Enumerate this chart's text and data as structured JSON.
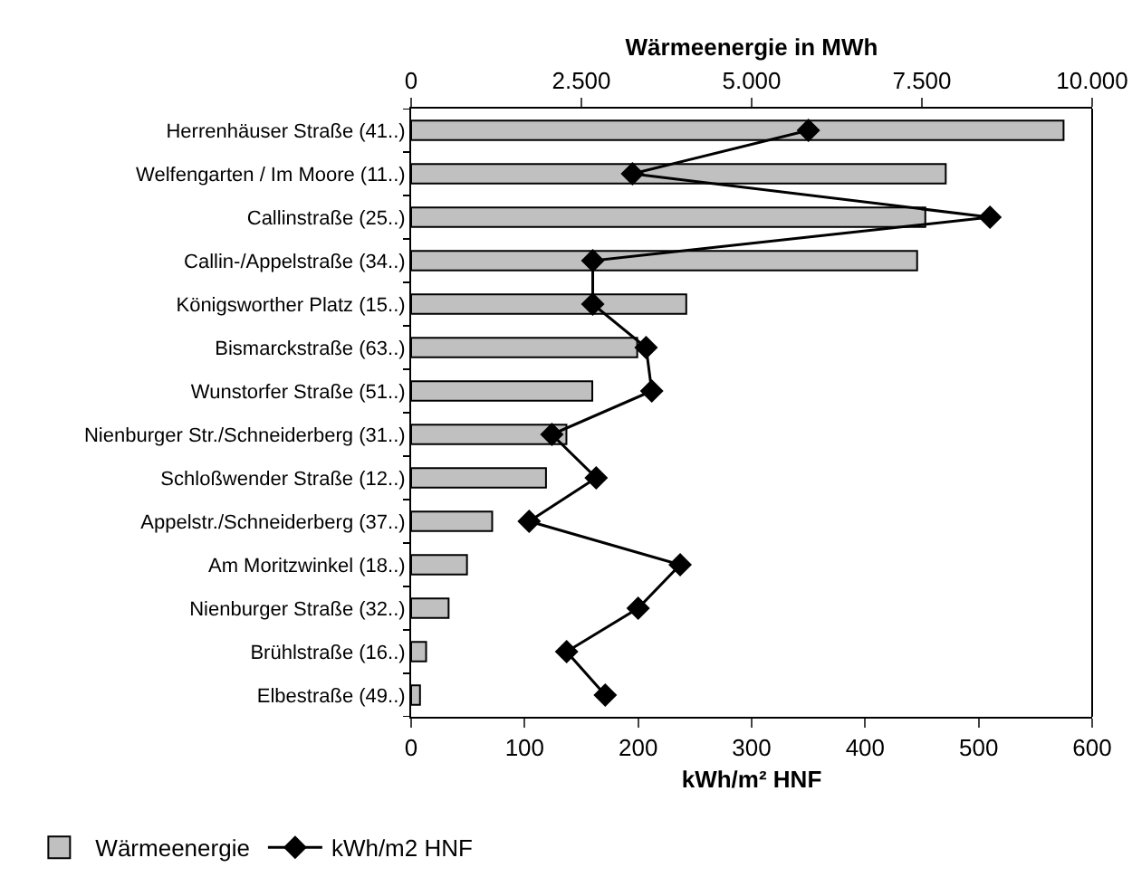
{
  "chart_data": {
    "type": "bar",
    "orientation": "horizontal",
    "categories": [
      "Herrenhäuser Straße (41..)",
      "Welfengarten / Im Moore (11..)",
      "Callinstraße (25..)",
      "Callin-/Appelstraße (34..)",
      "Königsworther Platz (15..)",
      "Bismarckstraße (63..)",
      "Wunstorfer Straße (51..)",
      "Nienburger Str./Schneiderberg (31..)",
      "Schloßwender Straße (12..)",
      "Appelstr./Schneiderberg (37..)",
      "Am Moritzwinkel (18..)",
      "Nienburger Straße (32..)",
      "Brühlstraße (16..)",
      "Elbestraße (49..)"
    ],
    "series": [
      {
        "name": "Wärmeenergie",
        "type": "bar",
        "axis": "x2",
        "color": "#c0c0c0",
        "values": [
          9580,
          7850,
          7550,
          7430,
          4040,
          3320,
          2660,
          2280,
          1980,
          1190,
          820,
          550,
          220,
          130
        ]
      },
      {
        "name": "kWh/m2 HNF",
        "type": "line",
        "color": "#000000",
        "values": [
          350,
          195,
          510,
          160,
          160,
          207,
          212,
          124,
          163,
          104,
          237,
          200,
          137,
          171
        ]
      }
    ],
    "xlabel": "kWh/m² HNF",
    "x2label": "Wärmeenergie in MWh",
    "xlim": [
      0,
      600
    ],
    "xticks": [
      0,
      100,
      200,
      300,
      400,
      500,
      600
    ],
    "x2lim": [
      0,
      10000
    ],
    "x2ticks": [
      0,
      {
        "value": 2500,
        "label": "2.500"
      },
      {
        "value": 5000,
        "label": "5.000"
      },
      {
        "value": 7500,
        "label": "7.500"
      },
      {
        "value": 10000,
        "label": "10.000"
      }
    ],
    "marker": "diamond",
    "line_style": "solid",
    "legend": "bottom",
    "grid": false
  }
}
